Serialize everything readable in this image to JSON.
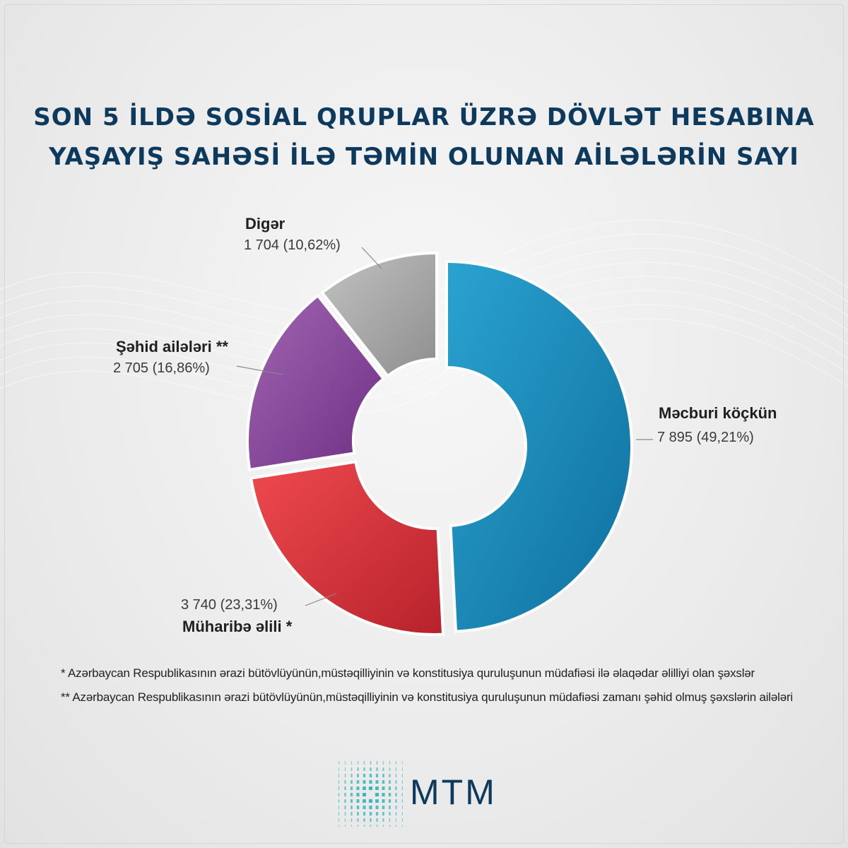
{
  "title": {
    "line1": "SON 5 İLDƏ SOSİAL QRUPLAR ÜZRƏ DÖVLƏT HESABINA",
    "line2": "YAŞAYIŞ SAHƏSİ İLƏ TƏMİN OLUNAN AİLƏLƏRİN SAYI"
  },
  "chart_data": {
    "type": "pie",
    "title": "SON 5 İLDƏ SOSİAL QRUPLAR ÜZRƏ DÖVLƏT HESABINA YAŞAYIŞ SAHƏSİ İLƏ TƏMİN OLUNAN AİLƏLƏRİN SAYI",
    "donut": true,
    "categories": [
      "Məcburi köçkün",
      "Müharibə əlili *",
      "Şəhid ailələri **",
      "Digər"
    ],
    "values": [
      7895,
      3740,
      2705,
      1704
    ],
    "percent": [
      49.21,
      23.31,
      16.86,
      10.62
    ],
    "value_labels": [
      "7 895 (49,21%)",
      "3 740 (23,31%)",
      "2 705 (16,86%)",
      "1 704 (10,62%)"
    ],
    "colors": [
      "#1b8fc0",
      "#e0393f",
      "#8e4a9e",
      "#a8a8a8"
    ]
  },
  "notes": [
    "*  Azərbaycan Respublikasının ərazi bütövlüyünün,müstəqilliyinin və konstitusiya quruluşunun müdafiəsi ilə əlaqədar əlilliyi olan şəxslər",
    "**  Azərbaycan Respublikasının ərazi bütövlüyünün,müstəqilliyinin və konstitusiya quruluşunun müdafiəsi zamanı şəhid olmuş şəxslərin ailələri"
  ],
  "logo": {
    "text": "MTM",
    "color": "#0d3a5c",
    "accent": "#2bb3b8"
  }
}
